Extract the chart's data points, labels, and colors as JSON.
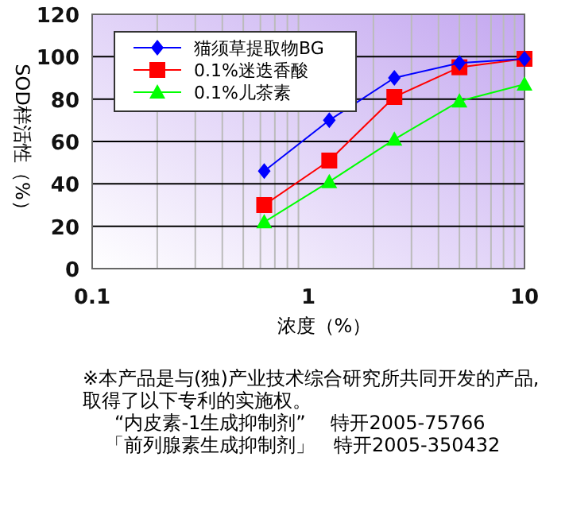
{
  "chart_data": {
    "type": "line",
    "xlabel": "浓度（%）",
    "ylabel": "SOD样活性（%）",
    "x": [
      0.625,
      1.25,
      2.5,
      5,
      10
    ],
    "series": [
      {
        "name": "猫须草提取物BG",
        "color": "#0000ff",
        "marker": "diamond",
        "values": [
          46,
          70,
          90,
          97,
          99
        ]
      },
      {
        "name": "0.1%迷迭香酸",
        "color": "#ff0000",
        "marker": "square",
        "values": [
          30,
          51,
          81,
          95,
          99
        ]
      },
      {
        "name": "0.1%儿茶素",
        "color": "#00ff00",
        "marker": "triangle",
        "values": [
          22,
          41,
          61,
          79,
          87
        ]
      }
    ],
    "log": "x",
    "xlim": [
      0.1,
      10
    ],
    "xticks": [
      0.1,
      1,
      10
    ],
    "ylim": [
      0,
      120
    ],
    "yticks": [
      0,
      20,
      40,
      60,
      80,
      100,
      120
    ],
    "grid": true,
    "legend": "top left",
    "annotations": [
      "※本产品是与(独)产业技术综合研究所共同开发的产品,取得了以下专利的实施权。",
      "“内皮素-1生成抑制剂”　 特开2005-75766",
      "「前列腺素生成抑制剂」　特开2005-350432"
    ]
  }
}
